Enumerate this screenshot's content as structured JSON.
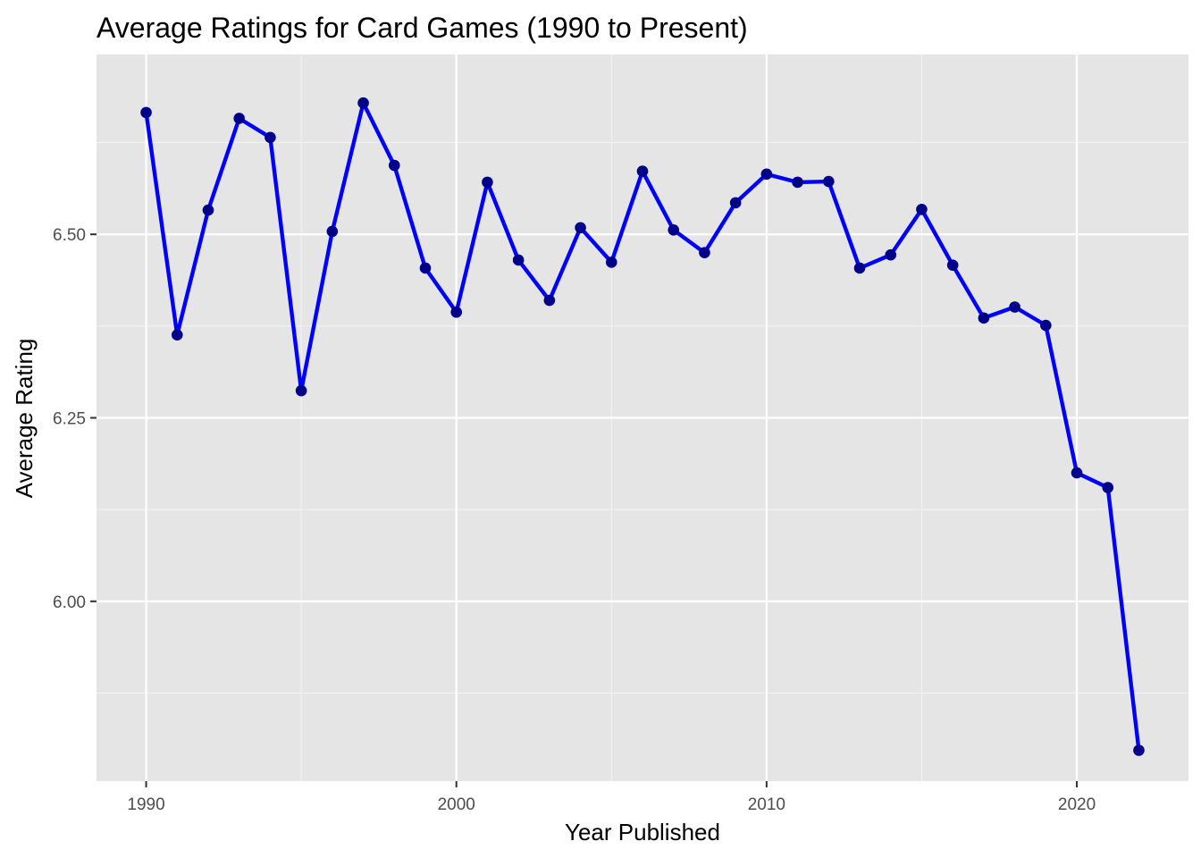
{
  "chart_data": {
    "type": "line",
    "title": "Average Ratings for Card Games (1990 to Present)",
    "xlabel": "Year Published",
    "ylabel": "Average Rating",
    "xlim": [
      1988.4,
      2023.6
    ],
    "ylim": [
      5.755,
      6.745
    ],
    "x_ticks": [
      1990,
      2000,
      2010,
      2020
    ],
    "x_tick_labels": [
      "1990",
      "2000",
      "2010",
      "2020"
    ],
    "y_ticks": [
      6.0,
      6.25,
      6.5
    ],
    "y_tick_labels": [
      "6.00",
      "6.25",
      "6.50"
    ],
    "grid": true,
    "legend": "none",
    "line_color": "#0000ff",
    "point_color": "#00008b",
    "panel_color": "#e5e5e5",
    "series": [
      {
        "x": [
          1990,
          1991,
          1992,
          1993,
          1994,
          1995,
          1996,
          1997,
          1998,
          1999,
          2000,
          2001,
          2002,
          2003,
          2004,
          2005,
          2006,
          2007,
          2008,
          2009,
          2010,
          2011,
          2012,
          2013,
          2014,
          2015,
          2016,
          2017,
          2018,
          2019,
          2020,
          2021,
          2022
        ],
        "y": [
          6.666,
          6.363,
          6.533,
          6.658,
          6.632,
          6.287,
          6.504,
          6.679,
          6.594,
          6.454,
          6.394,
          6.571,
          6.465,
          6.41,
          6.509,
          6.462,
          6.586,
          6.506,
          6.475,
          6.543,
          6.582,
          6.571,
          6.572,
          6.454,
          6.472,
          6.534,
          6.458,
          6.386,
          6.401,
          6.376,
          6.175,
          6.155,
          5.797
        ]
      }
    ]
  }
}
